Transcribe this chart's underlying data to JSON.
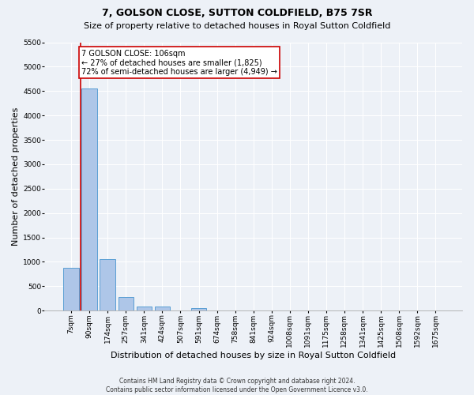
{
  "title": "7, GOLSON CLOSE, SUTTON COLDFIELD, B75 7SR",
  "subtitle": "Size of property relative to detached houses in Royal Sutton Coldfield",
  "xlabel": "Distribution of detached houses by size in Royal Sutton Coldfield",
  "ylabel": "Number of detached properties",
  "footer_line1": "Contains HM Land Registry data © Crown copyright and database right 2024.",
  "footer_line2": "Contains public sector information licensed under the Open Government Licence v3.0.",
  "bar_labels": [
    "7sqm",
    "90sqm",
    "174sqm",
    "257sqm",
    "341sqm",
    "424sqm",
    "507sqm",
    "591sqm",
    "674sqm",
    "758sqm",
    "841sqm",
    "924sqm",
    "1008sqm",
    "1091sqm",
    "1175sqm",
    "1258sqm",
    "1341sqm",
    "1425sqm",
    "1508sqm",
    "1592sqm",
    "1675sqm"
  ],
  "bar_values": [
    880,
    4560,
    1060,
    280,
    85,
    80,
    0,
    55,
    0,
    0,
    0,
    0,
    0,
    0,
    0,
    0,
    0,
    0,
    0,
    0,
    0
  ],
  "bar_color": "#aec6e8",
  "bar_edge_color": "#5a9fd4",
  "property_line_color": "#cc0000",
  "annotation_text": "7 GOLSON CLOSE: 106sqm\n← 27% of detached houses are smaller (1,825)\n72% of semi-detached houses are larger (4,949) →",
  "annotation_box_color": "#ffffff",
  "annotation_box_edge": "#cc0000",
  "ylim": [
    0,
    5500
  ],
  "yticks": [
    0,
    500,
    1000,
    1500,
    2000,
    2500,
    3000,
    3500,
    4000,
    4500,
    5000,
    5500
  ],
  "background_color": "#edf1f7",
  "plot_background": "#edf1f7",
  "grid_color": "#ffffff",
  "title_fontsize": 9,
  "subtitle_fontsize": 8,
  "axis_label_fontsize": 8,
  "tick_fontsize": 6.5,
  "footer_fontsize": 5.5,
  "annotation_fontsize": 7
}
